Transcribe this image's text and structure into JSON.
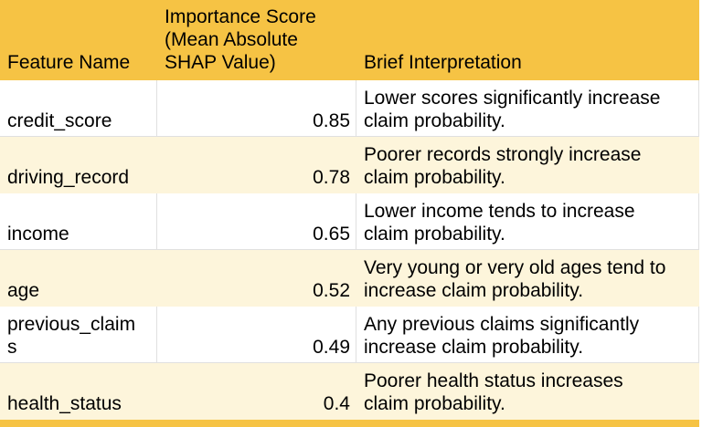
{
  "colors": {
    "header_bg": "#F6C344",
    "stripe_bg": "#FDF5DB",
    "gridline": "#E0E0E0",
    "text": "#000000"
  },
  "table": {
    "columns": [
      {
        "label": "Feature Name"
      },
      {
        "label": "Importance Score (Mean Absolute SHAP Value)"
      },
      {
        "label": "Brief Interpretation"
      }
    ],
    "rows": [
      {
        "feature": "credit_score",
        "score": "0.85",
        "interpretation": "Lower scores significantly increase claim probability."
      },
      {
        "feature": "driving_record",
        "score": "0.78",
        "interpretation": "Poorer records strongly increase claim probability."
      },
      {
        "feature": "income",
        "score": "0.65",
        "interpretation": "Lower income tends to increase claim probability."
      },
      {
        "feature": "age",
        "score": "0.52",
        "interpretation": "Very young or very old ages tend to increase claim probability."
      },
      {
        "feature": "previous_claims",
        "score": "0.49",
        "interpretation": "Any previous claims significantly increase claim probability."
      },
      {
        "feature": "health_status",
        "score": "0.4",
        "interpretation": "Poorer health status increases claim probability."
      }
    ]
  }
}
